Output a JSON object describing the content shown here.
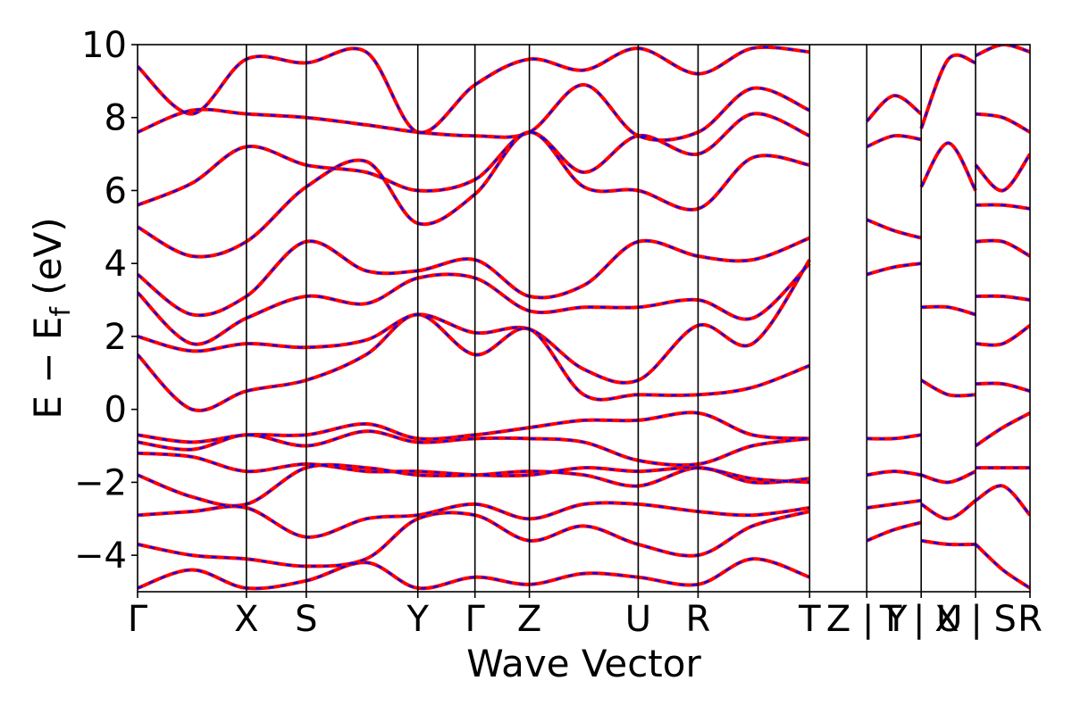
{
  "chart_data": {
    "type": "line",
    "title": "",
    "xlabel": "Wave Vector",
    "ylabel_main": "E − E",
    "ylabel_sub": "f",
    "ylabel_unit": " (eV)",
    "ylim": [
      -5,
      10
    ],
    "y_ticks": [
      {
        "value": -4,
        "label": "−4"
      },
      {
        "value": -2,
        "label": "−2"
      },
      {
        "value": 0,
        "label": "0"
      },
      {
        "value": 2,
        "label": "2"
      },
      {
        "value": 4,
        "label": "4"
      },
      {
        "value": 6,
        "label": "6"
      },
      {
        "value": 8,
        "label": "8"
      },
      {
        "value": 10,
        "label": "10"
      }
    ],
    "kpath_ticks": [
      {
        "label": "Γ",
        "k": 0.0
      },
      {
        "label": "X",
        "k": 2.0
      },
      {
        "label": "S",
        "k": 3.1
      },
      {
        "label": "Y",
        "k": 5.15
      },
      {
        "label": "Γ",
        "k": 6.2
      },
      {
        "label": "Z",
        "k": 7.2
      },
      {
        "label": "U",
        "k": 9.2
      },
      {
        "label": "R",
        "k": 10.3
      },
      {
        "label": "T",
        "k": 12.35
      },
      {
        "label": "Z | Y",
        "k": 13.4
      },
      {
        "label": "T | U",
        "k": 14.4
      },
      {
        "label": "X | S",
        "k": 15.4
      },
      {
        "label": "R",
        "k": 16.4
      }
    ],
    "grid": false,
    "series": [
      {
        "color": "#ff0000",
        "style": "solid",
        "bands": [
          {
            "k": [
              0,
              1,
              2,
              3.1,
              4.2,
              5.15,
              6.2,
              7.2,
              8.2,
              9.2,
              10.3,
              11.3,
              12.35
            ],
            "e": [
              -4.9,
              -4.4,
              -4.9,
              -4.7,
              -4.2,
              -4.9,
              -4.6,
              -4.8,
              -4.5,
              -4.6,
              -4.8,
              -4.1,
              -4.6
            ]
          },
          {
            "k": [
              0,
              1,
              2,
              3.1,
              4.2,
              5.15,
              6.2,
              7.2,
              8.2,
              9.2,
              10.3,
              11.3,
              12.35
            ],
            "e": [
              -3.7,
              -4.0,
              -4.1,
              -4.3,
              -4.1,
              -3.0,
              -2.9,
              -3.6,
              -3.2,
              -3.7,
              -4.0,
              -3.2,
              -2.8
            ]
          },
          {
            "k": [
              0,
              1,
              2,
              3.1,
              4.2,
              5.15,
              6.2,
              7.2,
              8.2,
              9.2,
              10.3,
              11.3,
              12.35
            ],
            "e": [
              -2.9,
              -2.8,
              -2.7,
              -3.5,
              -3.0,
              -2.9,
              -2.6,
              -3.0,
              -2.6,
              -2.6,
              -2.8,
              -2.9,
              -2.7
            ]
          },
          {
            "k": [
              0,
              1,
              2,
              3.1,
              4.2,
              5.15,
              6.2,
              7.2,
              8.2,
              9.2,
              10.3,
              11.3,
              12.35
            ],
            "e": [
              -1.8,
              -2.4,
              -2.6,
              -1.6,
              -1.6,
              -1.8,
              -1.8,
              -1.7,
              -1.8,
              -2.1,
              -1.6,
              -2.0,
              -1.9
            ]
          },
          {
            "k": [
              0,
              1,
              2,
              3.1,
              4.2,
              5.15,
              6.2,
              7.2,
              8.2,
              9.2,
              10.3,
              11.3,
              12.35
            ],
            "e": [
              -1.2,
              -1.3,
              -1.7,
              -1.5,
              -1.7,
              -1.7,
              -1.8,
              -1.8,
              -1.6,
              -1.7,
              -1.6,
              -1.9,
              -2.0
            ]
          },
          {
            "k": [
              0,
              1,
              2,
              3.1,
              4.2,
              5.15,
              6.2,
              7.2,
              8.2,
              9.2,
              10.3,
              11.3,
              12.35
            ],
            "e": [
              -0.9,
              -1.1,
              -0.7,
              -1.0,
              -0.6,
              -0.9,
              -0.8,
              -0.8,
              -0.9,
              -1.4,
              -1.5,
              -1.0,
              -0.8
            ]
          },
          {
            "k": [
              0,
              1,
              2,
              3.1,
              4.2,
              5.15,
              6.2,
              7.2,
              8.2,
              9.2,
              10.3,
              11.3,
              12.35
            ],
            "e": [
              -0.7,
              -0.9,
              -0.7,
              -0.7,
              -0.4,
              -0.8,
              -0.7,
              -0.5,
              -0.3,
              -0.3,
              -0.1,
              -0.7,
              -0.8
            ]
          },
          {
            "k": [
              0,
              1,
              2,
              3.1,
              4.2,
              5.15,
              6.2,
              7.2,
              8.2,
              9.2,
              10.3,
              11.3,
              12.35
            ],
            "e": [
              1.5,
              0.0,
              0.5,
              0.8,
              1.5,
              2.6,
              1.5,
              2.2,
              0.4,
              0.4,
              0.4,
              0.6,
              1.2
            ]
          },
          {
            "k": [
              0,
              1,
              2,
              3.1,
              4.2,
              5.15,
              6.2,
              7.2,
              8.2,
              9.2,
              10.3,
              11.3,
              12.35
            ],
            "e": [
              2.0,
              1.6,
              1.8,
              1.7,
              1.9,
              2.6,
              2.1,
              2.2,
              1.1,
              0.8,
              2.3,
              1.8,
              4.1
            ]
          },
          {
            "k": [
              0,
              1,
              2,
              3.1,
              4.2,
              5.15,
              6.2,
              7.2,
              8.2,
              9.2,
              10.3,
              11.3,
              12.35
            ],
            "e": [
              3.2,
              1.8,
              2.5,
              3.1,
              2.9,
              3.6,
              3.6,
              2.7,
              2.8,
              2.8,
              3.0,
              2.5,
              4.0
            ]
          },
          {
            "k": [
              0,
              1,
              2,
              3.1,
              4.2,
              5.15,
              6.2,
              7.2,
              8.2,
              9.2,
              10.3,
              11.3,
              12.35
            ],
            "e": [
              3.7,
              2.6,
              3.1,
              4.6,
              3.8,
              3.8,
              4.1,
              3.1,
              3.4,
              4.6,
              4.2,
              4.1,
              4.7
            ]
          },
          {
            "k": [
              0,
              1,
              2,
              3.1,
              4.2,
              5.15,
              6.2,
              7.2,
              8.2,
              9.2,
              10.3,
              11.3,
              12.35
            ],
            "e": [
              5.0,
              4.2,
              4.6,
              6.1,
              6.8,
              5.1,
              5.9,
              7.6,
              6.1,
              6.0,
              5.5,
              6.9,
              6.7
            ]
          },
          {
            "k": [
              0,
              1,
              2,
              3.1,
              4.2,
              5.15,
              6.2,
              7.2,
              8.2,
              9.2,
              10.3,
              11.3,
              12.35
            ],
            "e": [
              5.6,
              6.2,
              7.2,
              6.7,
              6.5,
              6.0,
              6.3,
              7.6,
              6.5,
              7.5,
              7.0,
              8.1,
              7.5
            ]
          },
          {
            "k": [
              0,
              1,
              2,
              3.1,
              4.2,
              5.15,
              6.2,
              7.2,
              8.2,
              9.2,
              10.3,
              11.3,
              12.35
            ],
            "e": [
              7.6,
              8.2,
              8.1,
              8.0,
              7.8,
              7.6,
              7.5,
              7.6,
              8.9,
              7.5,
              7.6,
              8.8,
              8.2
            ]
          },
          {
            "k": [
              0,
              1,
              2,
              3.1,
              4.2,
              5.15,
              6.2,
              7.2,
              8.2,
              9.2,
              10.3,
              11.3,
              12.35
            ],
            "e": [
              9.4,
              8.1,
              9.6,
              9.5,
              9.8,
              7.6,
              8.9,
              9.6,
              9.3,
              9.9,
              9.2,
              9.9,
              9.8
            ]
          },
          {
            "k": [
              13.4,
              13.9,
              14.4
            ],
            "e": [
              -3.6,
              -3.3,
              -3.1
            ]
          },
          {
            "k": [
              13.4,
              13.9,
              14.4
            ],
            "e": [
              -2.7,
              -2.6,
              -2.5
            ]
          },
          {
            "k": [
              13.4,
              13.9,
              14.4
            ],
            "e": [
              -1.8,
              -1.7,
              -1.8
            ]
          },
          {
            "k": [
              13.4,
              13.9,
              14.4
            ],
            "e": [
              -0.8,
              -0.8,
              -0.7
            ]
          },
          {
            "k": [
              13.4,
              13.9,
              14.4
            ],
            "e": [
              3.7,
              3.9,
              4.0
            ]
          },
          {
            "k": [
              13.4,
              13.9,
              14.4
            ],
            "e": [
              5.2,
              4.9,
              4.7
            ]
          },
          {
            "k": [
              13.4,
              13.9,
              14.4
            ],
            "e": [
              7.2,
              7.5,
              7.4
            ]
          },
          {
            "k": [
              13.4,
              13.9,
              14.4
            ],
            "e": [
              7.9,
              8.6,
              8.1
            ]
          },
          {
            "k": [
              14.4,
              14.9,
              15.4
            ],
            "e": [
              -3.6,
              -3.7,
              -3.7
            ]
          },
          {
            "k": [
              14.4,
              14.9,
              15.4
            ],
            "e": [
              -2.6,
              -3.0,
              -2.5
            ]
          },
          {
            "k": [
              14.4,
              14.9,
              15.4
            ],
            "e": [
              -1.8,
              -2.0,
              -1.7
            ]
          },
          {
            "k": [
              14.4,
              14.9,
              15.4
            ],
            "e": [
              0.8,
              0.4,
              0.4
            ]
          },
          {
            "k": [
              14.4,
              14.9,
              15.4
            ],
            "e": [
              2.8,
              2.8,
              2.6
            ]
          },
          {
            "k": [
              14.4,
              14.9,
              15.4
            ],
            "e": [
              6.1,
              7.3,
              6.0
            ]
          },
          {
            "k": [
              14.4,
              14.9,
              15.4
            ],
            "e": [
              7.7,
              9.6,
              9.5
            ]
          },
          {
            "k": [
              15.4,
              15.9,
              16.4
            ],
            "e": [
              -3.7,
              -4.4,
              -4.9
            ]
          },
          {
            "k": [
              15.4,
              15.9,
              16.4
            ],
            "e": [
              -2.5,
              -2.1,
              -2.9
            ]
          },
          {
            "k": [
              15.4,
              15.9,
              16.4
            ],
            "e": [
              -1.6,
              -1.6,
              -1.6
            ]
          },
          {
            "k": [
              15.4,
              15.9,
              16.4
            ],
            "e": [
              -1.0,
              -0.5,
              -0.1
            ]
          },
          {
            "k": [
              15.4,
              15.9,
              16.4
            ],
            "e": [
              0.7,
              0.7,
              0.5
            ]
          },
          {
            "k": [
              15.4,
              15.9,
              16.4
            ],
            "e": [
              1.8,
              1.8,
              2.3
            ]
          },
          {
            "k": [
              15.4,
              15.9,
              16.4
            ],
            "e": [
              3.1,
              3.1,
              3.0
            ]
          },
          {
            "k": [
              15.4,
              15.9,
              16.4
            ],
            "e": [
              4.6,
              4.6,
              4.2
            ]
          },
          {
            "k": [
              15.4,
              15.9,
              16.4
            ],
            "e": [
              5.6,
              5.6,
              5.5
            ]
          },
          {
            "k": [
              15.4,
              15.9,
              16.4
            ],
            "e": [
              6.7,
              6.0,
              7.0
            ]
          },
          {
            "k": [
              15.4,
              15.9,
              16.4
            ],
            "e": [
              8.1,
              8.0,
              7.6
            ]
          },
          {
            "k": [
              15.4,
              15.9,
              16.4
            ],
            "e": [
              9.7,
              10.0,
              9.8
            ]
          }
        ]
      },
      {
        "color": "#0000ff",
        "style": "dashed",
        "same_bands_as": 0
      }
    ]
  }
}
